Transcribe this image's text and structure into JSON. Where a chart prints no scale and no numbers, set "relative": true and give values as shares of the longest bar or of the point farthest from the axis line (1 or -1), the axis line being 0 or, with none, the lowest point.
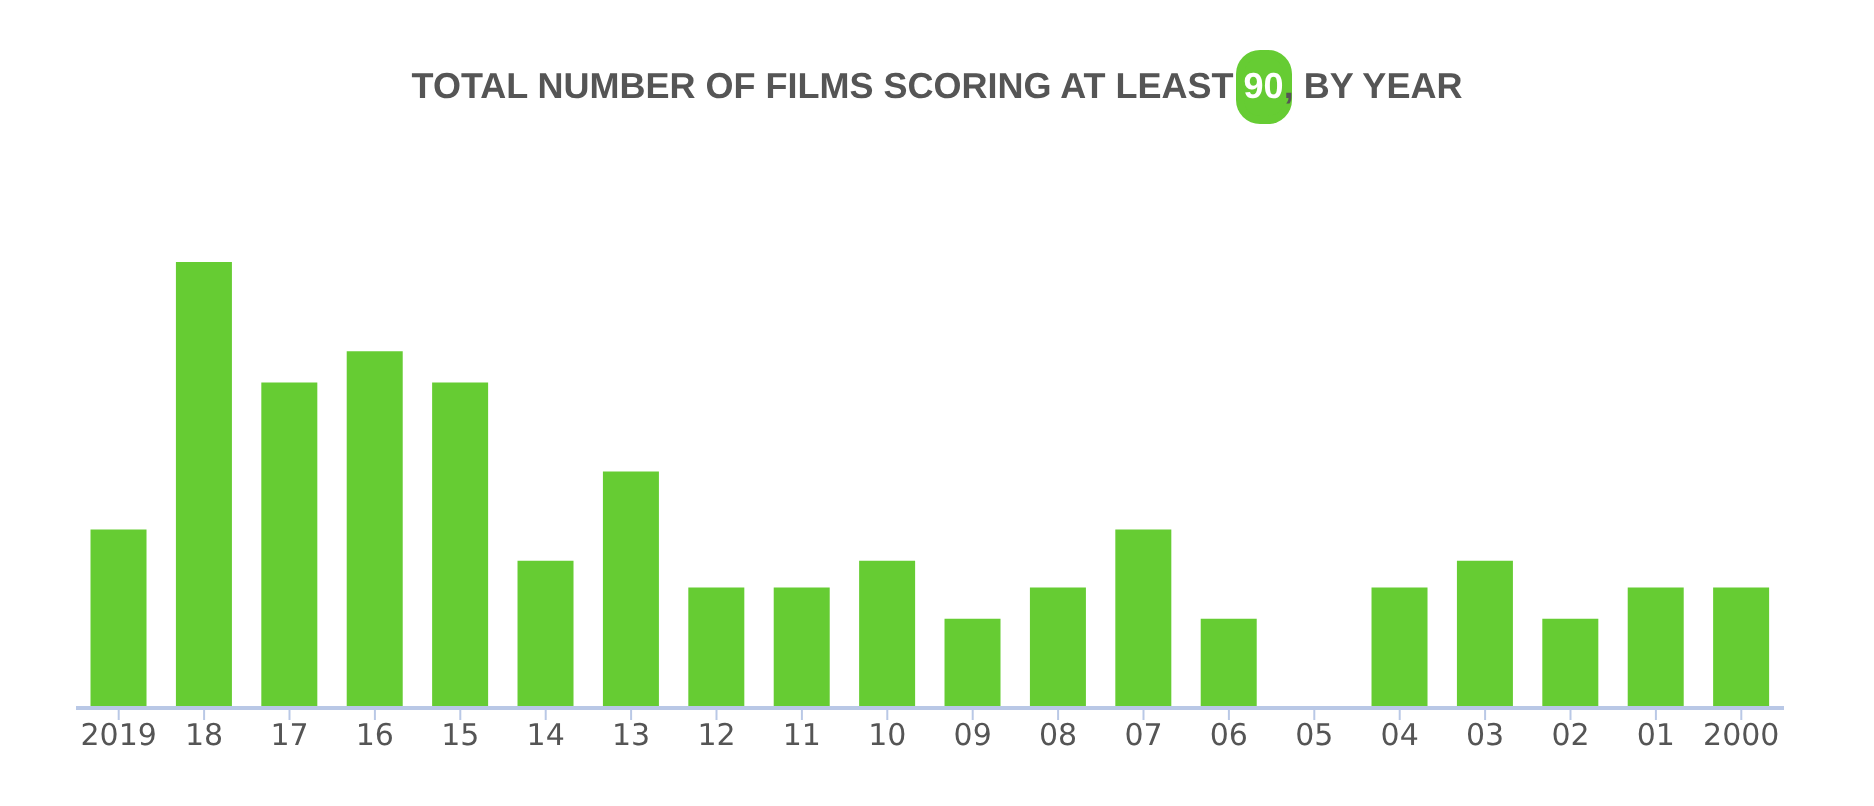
{
  "chart_data": {
    "type": "bar",
    "title": "TOTAL NUMBER OF FILMS SCORING AT LEAST 90, BY YEAR",
    "relative": true,
    "categories": [
      "2019",
      "18",
      "17",
      "16",
      "15",
      "14",
      "13",
      "12",
      "11",
      "10",
      "09",
      "08",
      "07",
      "06",
      "05",
      "04",
      "03",
      "02",
      "01",
      "2000"
    ],
    "values": [
      0.4,
      1,
      0.73,
      0.8,
      0.73,
      0.33,
      0.53,
      0.27,
      0.27,
      0.33,
      0.2,
      0.27,
      0.4,
      0.2,
      0,
      0.27,
      0.33,
      0.2,
      0.27,
      0.27
    ],
    "color": "#66cc33",
    "grid": false,
    "legend": false
  }
}
